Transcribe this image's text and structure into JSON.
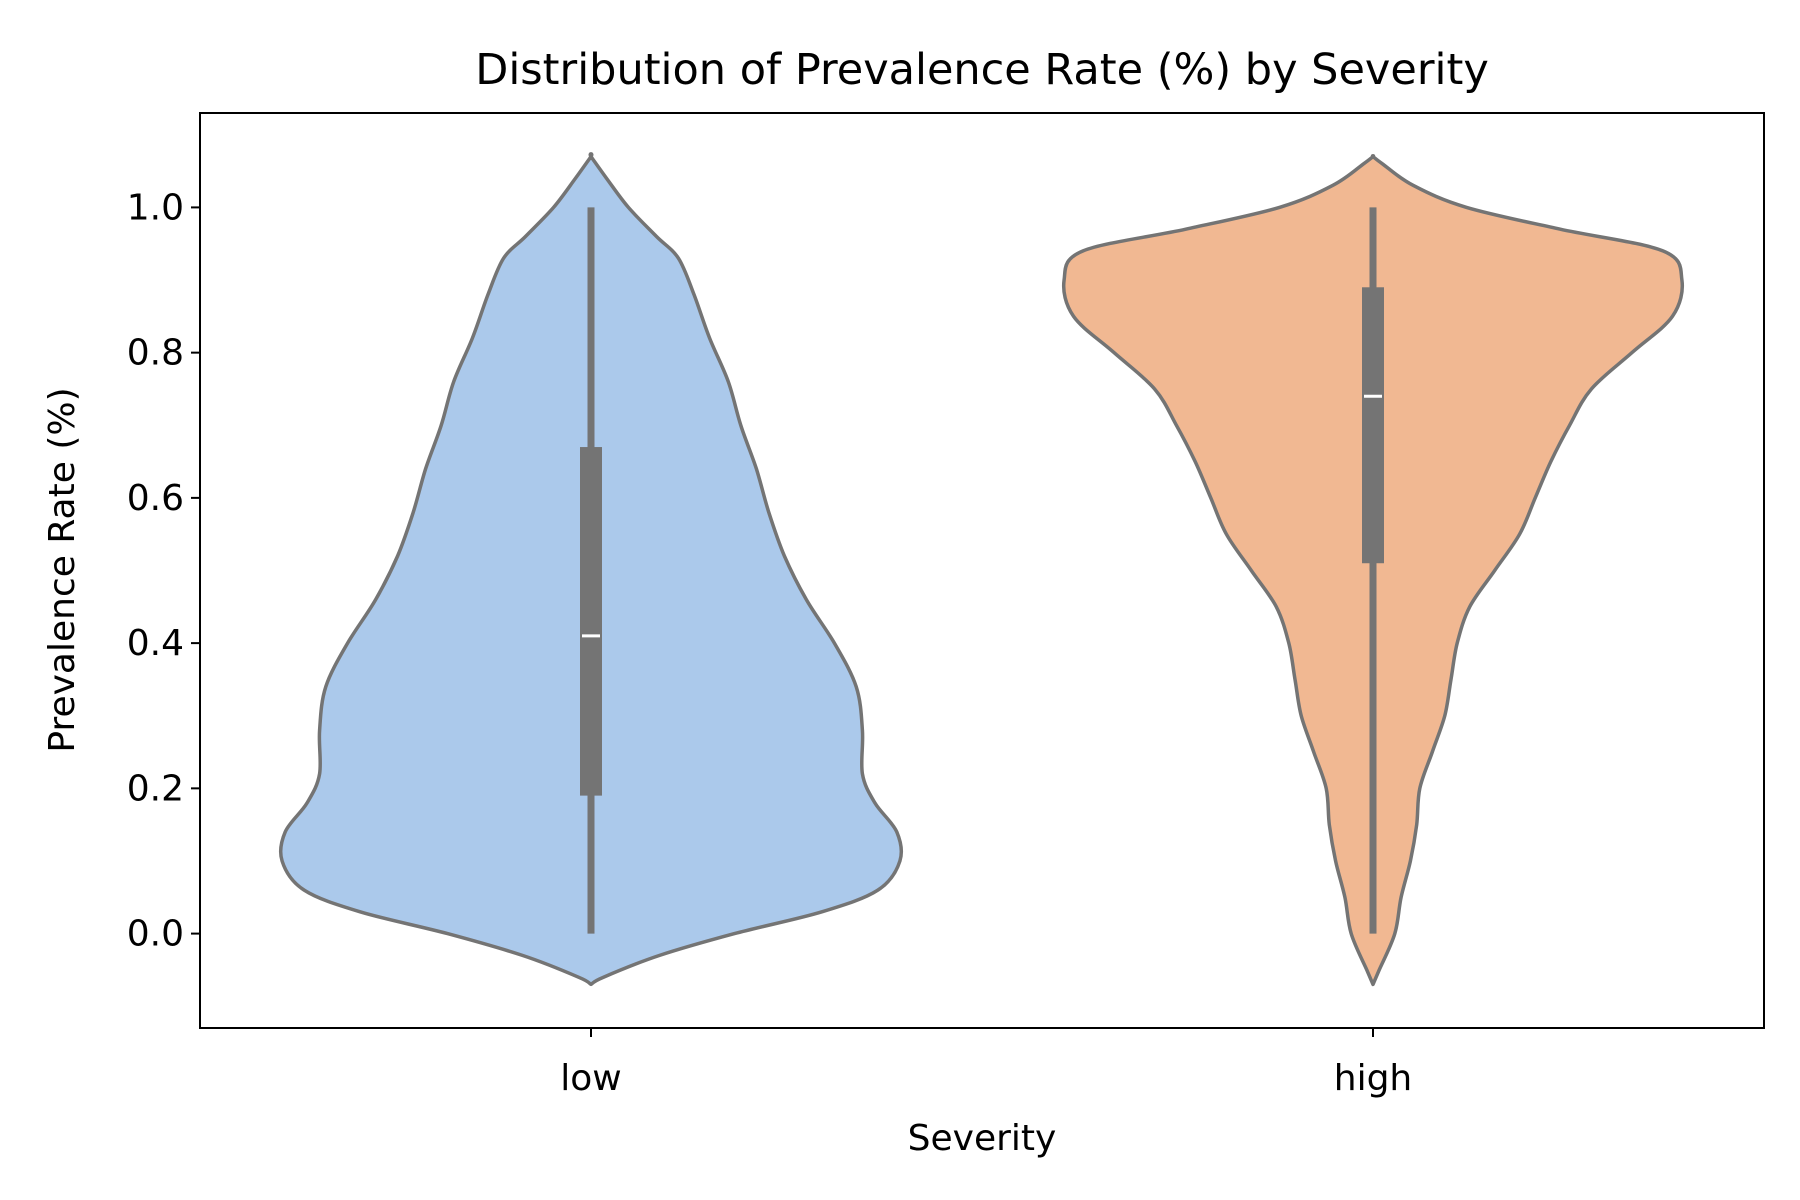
{
  "chart_data": {
    "type": "violin",
    "title": "Distribution of Prevalence Rate (%) by Severity",
    "xlabel": "Severity",
    "ylabel": "Prevalence Rate (%)",
    "categories": [
      "low",
      "high"
    ],
    "ylim": [
      -0.13,
      1.13
    ],
    "yticks": [
      0.0,
      0.2,
      0.4,
      0.6,
      0.8,
      1.0
    ],
    "ytick_labels": [
      "0.0",
      "0.2",
      "0.4",
      "0.6",
      "0.8",
      "1.0"
    ],
    "grid": false,
    "violins": [
      {
        "category": "low",
        "color": "#abc9eb",
        "min": 0.0,
        "q1": 0.19,
        "median": 0.41,
        "q3": 0.67,
        "max": 1.0,
        "density_range": [
          -0.07,
          1.07
        ],
        "density": [
          [
            -0.07,
            0.0
          ],
          [
            -0.06,
            0.04
          ],
          [
            -0.03,
            0.22
          ],
          [
            0.0,
            0.46
          ],
          [
            0.03,
            0.74
          ],
          [
            0.06,
            0.92
          ],
          [
            0.1,
            0.99
          ],
          [
            0.14,
            0.98
          ],
          [
            0.18,
            0.91
          ],
          [
            0.22,
            0.87
          ],
          [
            0.28,
            0.87
          ],
          [
            0.34,
            0.85
          ],
          [
            0.4,
            0.78
          ],
          [
            0.46,
            0.69
          ],
          [
            0.52,
            0.62
          ],
          [
            0.58,
            0.57
          ],
          [
            0.64,
            0.53
          ],
          [
            0.7,
            0.48
          ],
          [
            0.76,
            0.44
          ],
          [
            0.82,
            0.38
          ],
          [
            0.88,
            0.33
          ],
          [
            0.93,
            0.28
          ],
          [
            0.96,
            0.21
          ],
          [
            1.0,
            0.12
          ],
          [
            1.04,
            0.05
          ],
          [
            1.07,
            0.0
          ]
        ]
      },
      {
        "category": "high",
        "color": "#f1b892",
        "min": 0.0,
        "q1": 0.51,
        "median": 0.74,
        "q3": 0.89,
        "max": 1.0,
        "density_range": [
          -0.07,
          1.07
        ],
        "density": [
          [
            -0.07,
            0.0
          ],
          [
            -0.05,
            0.02
          ],
          [
            0.0,
            0.07
          ],
          [
            0.05,
            0.09
          ],
          [
            0.1,
            0.12
          ],
          [
            0.15,
            0.14
          ],
          [
            0.2,
            0.15
          ],
          [
            0.25,
            0.19
          ],
          [
            0.3,
            0.23
          ],
          [
            0.35,
            0.25
          ],
          [
            0.4,
            0.27
          ],
          [
            0.45,
            0.31
          ],
          [
            0.5,
            0.39
          ],
          [
            0.55,
            0.47
          ],
          [
            0.6,
            0.52
          ],
          [
            0.65,
            0.57
          ],
          [
            0.7,
            0.63
          ],
          [
            0.75,
            0.7
          ],
          [
            0.8,
            0.83
          ],
          [
            0.85,
            0.96
          ],
          [
            0.9,
            0.99
          ],
          [
            0.94,
            0.93
          ],
          [
            0.97,
            0.6
          ],
          [
            1.0,
            0.3
          ],
          [
            1.03,
            0.13
          ],
          [
            1.06,
            0.03
          ],
          [
            1.07,
            0.0
          ]
        ]
      }
    ]
  }
}
